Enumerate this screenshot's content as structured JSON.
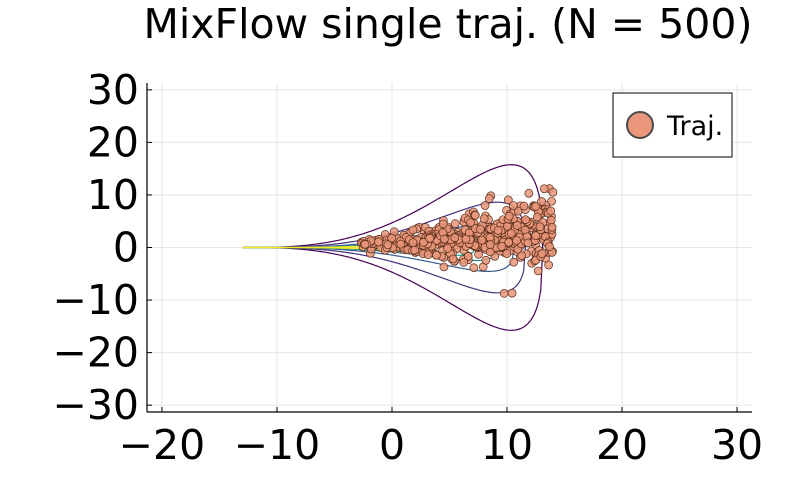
{
  "chart_data": {
    "type": "scatter",
    "title": "MixFlow single traj. (N = 500)",
    "xlabel": "",
    "ylabel": "",
    "xlim": [
      -21.3,
      31.3
    ],
    "ylim": [
      -31.3,
      31.3
    ],
    "xticks": [
      -20,
      -10,
      0,
      10,
      20,
      30
    ],
    "yticks": [
      -30,
      -20,
      -10,
      0,
      10,
      20,
      30
    ],
    "xtick_labels": [
      "−20",
      "−10",
      "0",
      "10",
      "20",
      "30"
    ],
    "ytick_labels": [
      "−30",
      "−20",
      "−10",
      "0",
      "10",
      "20",
      "30"
    ],
    "grid": true,
    "legend_position": "top-right",
    "contours": {
      "description_levels": 8,
      "left_tip_x": -13,
      "colors": [
        "#440154",
        "#46327e",
        "#365c8d",
        "#277f8e",
        "#1fa187",
        "#4ac16d",
        "#a0da39",
        "#fde725"
      ]
    },
    "series": [
      {
        "name": "Traj.",
        "marker_color": "#e9967a",
        "marker_edge": "#5a2d1a",
        "n_points": 500,
        "approx_region": {
          "x": [
            -3,
            14
          ],
          "y": [
            -4,
            11
          ]
        }
      }
    ]
  }
}
